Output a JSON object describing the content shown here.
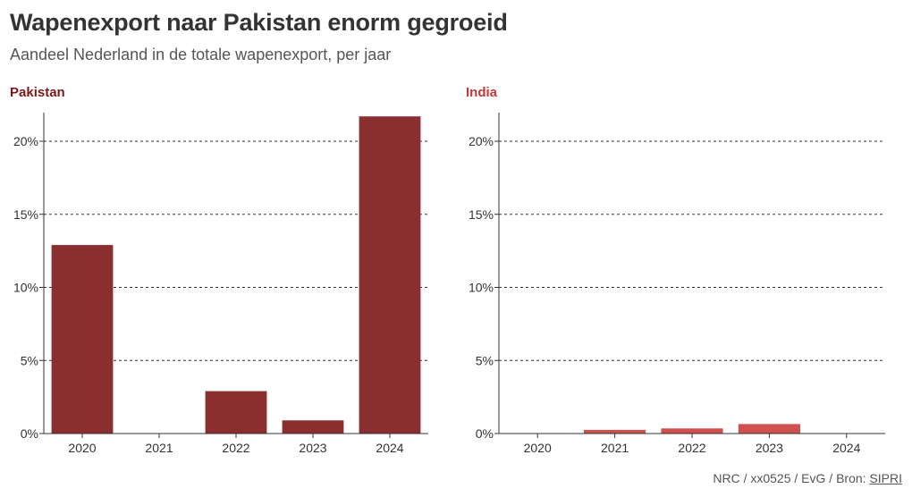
{
  "header": {
    "title": "Wapenexport naar Pakistan enorm gegroeid",
    "subtitle": "Aandeel Nederland in de totale wapenexport, per jaar"
  },
  "footer": {
    "credit": "NRC / xx0525 / EvG / Bron: ",
    "source": "SIPRI"
  },
  "chart_data": [
    {
      "type": "bar",
      "title": "Pakistan",
      "categories": [
        "2020",
        "2021",
        "2022",
        "2023",
        "2024"
      ],
      "values": [
        12.9,
        0,
        2.9,
        0.9,
        21.7
      ],
      "ylim": [
        0,
        22
      ],
      "yticks": [
        0,
        5,
        10,
        15,
        20
      ],
      "ytick_labels": [
        "0%",
        "5%",
        "10%",
        "15%",
        "20%"
      ],
      "grid": true,
      "bar_color": "#8B2E30",
      "title_color": "#7A1A1A"
    },
    {
      "type": "bar",
      "title": "India",
      "categories": [
        "2020",
        "2021",
        "2022",
        "2023",
        "2024"
      ],
      "values": [
        0,
        0.25,
        0.35,
        0.65,
        0
      ],
      "ylim": [
        0,
        22
      ],
      "yticks": [
        0,
        5,
        10,
        15,
        20
      ],
      "ytick_labels": [
        "0%",
        "5%",
        "10%",
        "15%",
        "20%"
      ],
      "grid": true,
      "bar_color": "#D0504F",
      "title_color": "#C0393B"
    }
  ]
}
